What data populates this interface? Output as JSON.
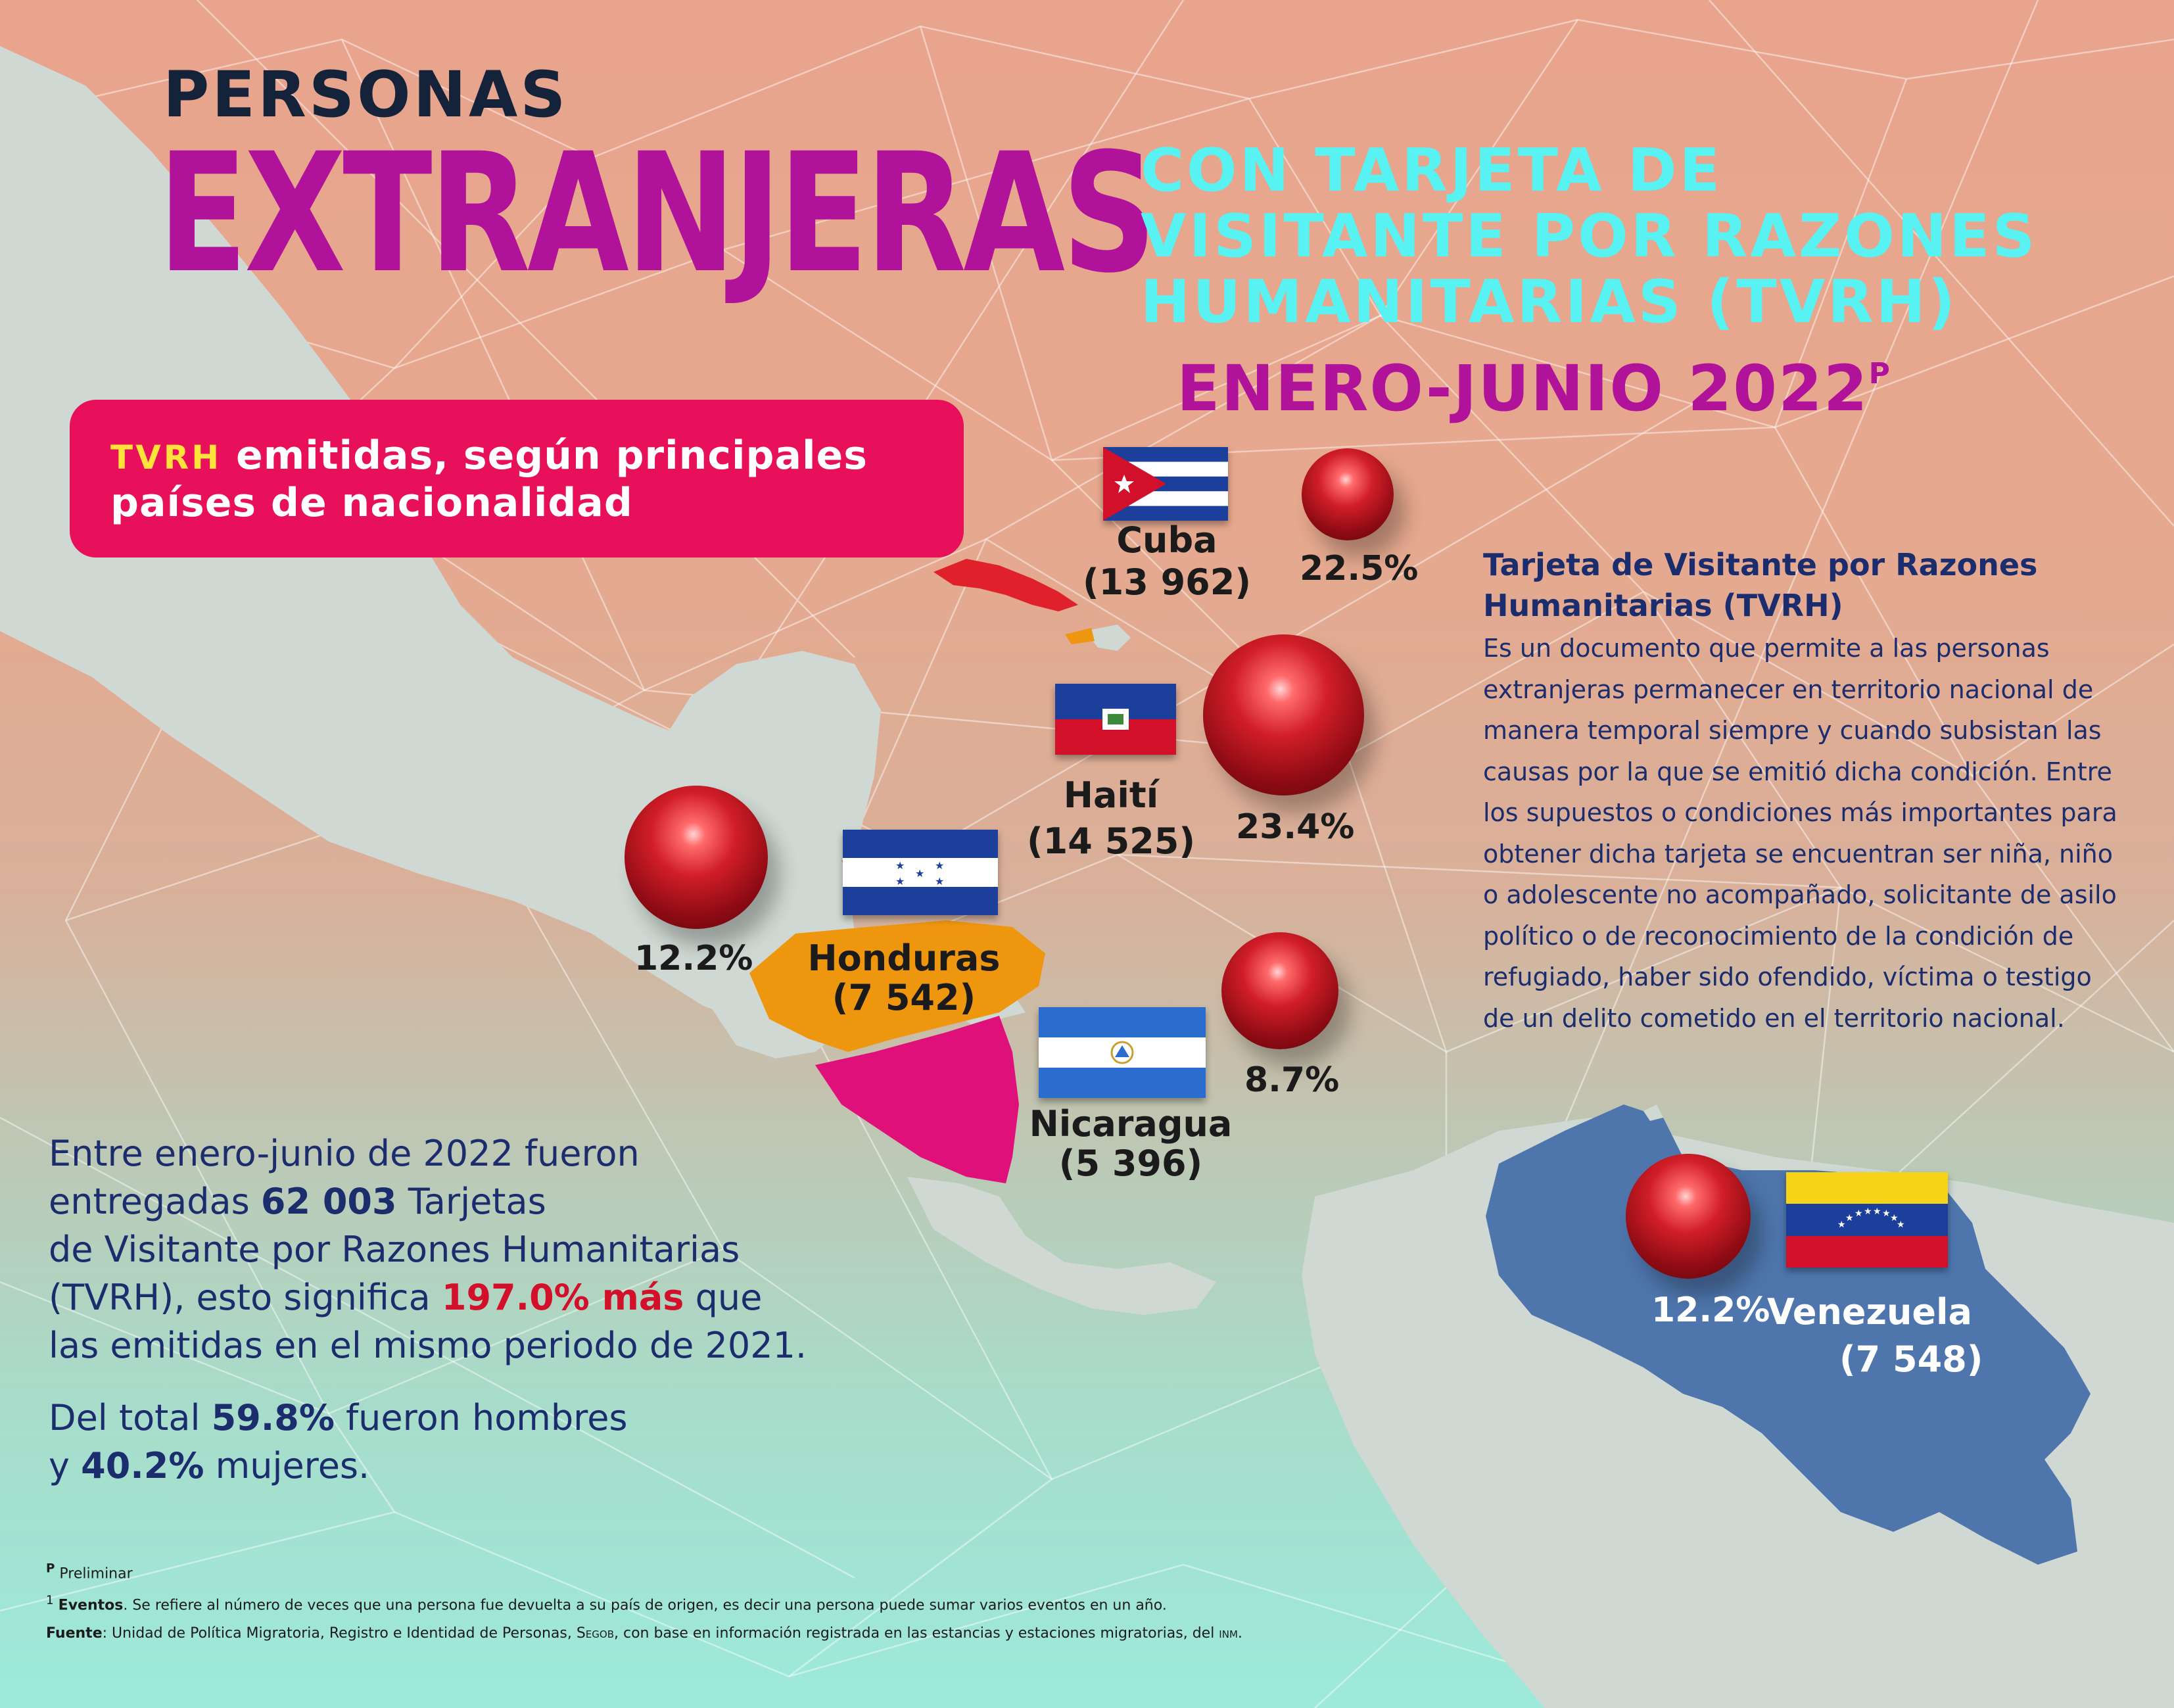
{
  "header": {
    "line1": "PERSONAS",
    "line2": "EXTRANJERAS",
    "line3a": "CON TARJETA DE",
    "line3b": "VISITANTE POR RAZONES",
    "line3c": "HUMANITARIAS (TVRH)",
    "period": "ENERO-JUNIO 2022",
    "period_mark": "P"
  },
  "subtitle": {
    "acronym": "TVRH",
    "line1_rest": " emitidas, según principales",
    "line2": "países de nacionalidad"
  },
  "countries": [
    {
      "name": "Cuba",
      "count": "(13 962)",
      "percent": "22.5%",
      "percent_value": 22.5,
      "flag_icon": "cuba-flag-icon"
    },
    {
      "name": "Haití",
      "count": "(14 525)",
      "percent": "23.4%",
      "percent_value": 23.4,
      "flag_icon": "haiti-flag-icon"
    },
    {
      "name": "Honduras",
      "count": "(7 542)",
      "percent": "12.2%",
      "percent_value": 12.2,
      "flag_icon": "honduras-flag-icon"
    },
    {
      "name": "Nicaragua",
      "count": "(5 396)",
      "percent": "8.7%",
      "percent_value": 8.7,
      "flag_icon": "nicaragua-flag-icon"
    },
    {
      "name": "Venezuela",
      "count": "(7 548)",
      "percent": "12.2%",
      "percent_value": 12.2,
      "flag_icon": "venezuela-flag-icon"
    }
  ],
  "definition": {
    "title1": "Tarjeta de Visitante por Razones",
    "title2": "Humanitarias (",
    "title_acr": "TVRH",
    "title3": ")",
    "body": "Es un documento que permite a las personas extranjeras permanecer en territorio nacional de manera temporal siempre y cuando subsistan las causas por la que se emitió dicha condición. Entre los supuestos o condiciones más importantes para obtener dicha tarjeta se encuentran ser niña, niño o adolescente no acompañado, solicitante de asilo político o de reconocimiento de la condición de refugiado, haber sido ofendido, víctima o testigo de un delito cometido en el territorio nacional."
  },
  "summary": {
    "p1": "Entre enero-junio de 2022  fueron",
    "p2a": "entregadas ",
    "p2b": "62 003",
    "p2c": " Tarjetas",
    "p3": "de Visitante por Razones Humanitarias",
    "p4a": "(",
    "p4acr": "TVRH",
    "p4b": "), esto significa ",
    "p4c": "197.0% más",
    "p4d": " que",
    "p5": "las emitidas en el mismo periodo de 2021.",
    "q1a": "Del total ",
    "q1b": "59.8%",
    "q1c": " fueron hombres",
    "q2a": "y ",
    "q2b": "40.2%",
    "q2c": " mujeres."
  },
  "footnotes": {
    "prelim_mark": "P",
    "prelim": " Preliminar",
    "events_mark": "1",
    "events_label": "Eventos",
    "events_text": ". Se refiere al número de veces que una persona fue devuelta a su país de origen,  es decir una persona puede sumar varios eventos en un año.",
    "source_label": "Fuente",
    "source_text1": ": Unidad de Política Migratoria, Registro e Identidad de Personas, ",
    "source_segob": "Segob",
    "source_text2": ", con base en información registrada en las estancias y estaciones migratorias, del ",
    "source_inm": "inm",
    "source_end": "."
  },
  "colors": {
    "magenta_title": "#b0129a",
    "cyan_title": "#58f2f2",
    "subtitle_box": "#e8105a",
    "navy_text": "#1c2d6e",
    "highlight_red": "#d2102a",
    "honduras_map": "#ef960f",
    "nicaragua_map": "#e0107a",
    "venezuela_map": "#4e76ad",
    "cuba_map": "#e0202a",
    "land": "#cfd8d3"
  }
}
